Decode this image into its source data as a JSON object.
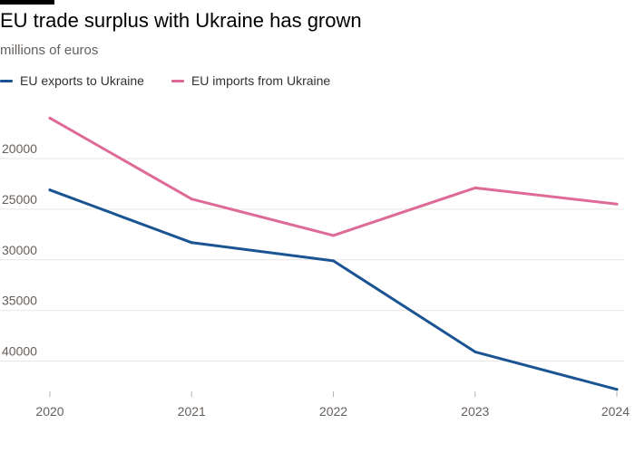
{
  "colors": {
    "exports": "#1a5493",
    "imports": "#de6b97",
    "grid": "#e9e6e2",
    "axis": "#b8b2ad"
  },
  "chart_data": {
    "type": "line",
    "title": "EU trade surplus with Ukraine has grown",
    "subtitle": "millions of euros",
    "x": [
      "2020",
      "2021",
      "2022",
      "2023",
      "2024"
    ],
    "series": [
      {
        "name": "EU exports to Ukraine",
        "color": "#1a5493",
        "values": [
          23100,
          28300,
          30100,
          39100,
          42800
        ]
      },
      {
        "name": "EU imports from Ukraine",
        "color": "#de6b97",
        "values": [
          16000,
          24000,
          27600,
          22900,
          24500
        ]
      }
    ],
    "y_ticks": [
      20000,
      25000,
      30000,
      35000,
      40000
    ],
    "ylim": [
      14000,
      43000
    ],
    "y_axis_inverted": true,
    "grid": true,
    "legend_position": "top-left"
  }
}
